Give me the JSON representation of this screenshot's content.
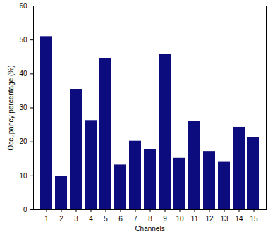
{
  "chart_data": {
    "type": "bar",
    "categories": [
      "1",
      "2",
      "3",
      "4",
      "5",
      "6",
      "7",
      "8",
      "9",
      "10",
      "11",
      "12",
      "13",
      "14",
      "15"
    ],
    "values": [
      51,
      9.8,
      35.5,
      26.3,
      44.5,
      13.2,
      20.2,
      17.7,
      45.7,
      15.2,
      26.1,
      17.2,
      14,
      24.3,
      21.3
    ],
    "color": "#0c0c7e",
    "x_label": "Channels",
    "y_label": "Occupancy percentage (%)",
    "ylim": [
      0,
      60
    ],
    "yticks": [
      0,
      10,
      20,
      30,
      40,
      50,
      60
    ],
    "grid": false
  }
}
